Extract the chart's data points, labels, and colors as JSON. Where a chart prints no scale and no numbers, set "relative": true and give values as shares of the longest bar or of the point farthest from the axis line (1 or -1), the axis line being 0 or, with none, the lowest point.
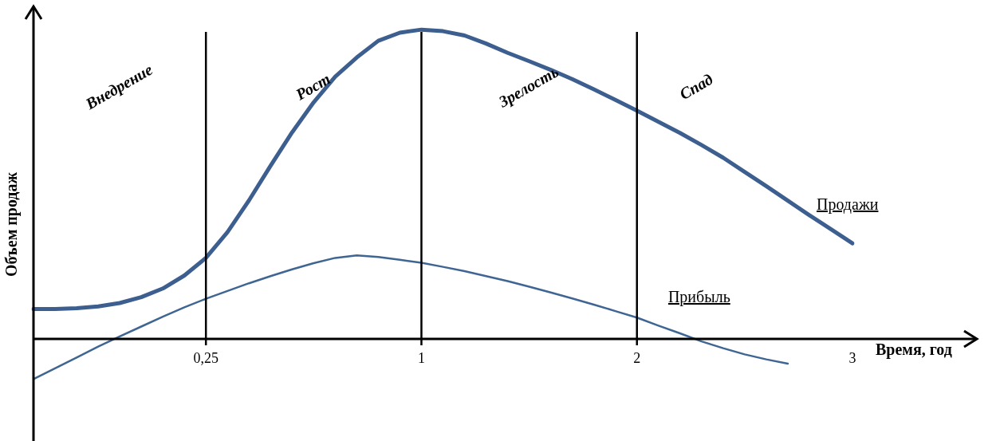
{
  "chart_data": {
    "type": "line",
    "relative": true,
    "ylabel": "Объем продаж",
    "xlabel": "Время, год",
    "categories": [
      null,
      null,
      null,
      null,
      null,
      null,
      null,
      null,
      "0,25",
      null,
      null,
      null,
      null,
      null,
      null,
      null,
      null,
      null,
      "1",
      null,
      null,
      null,
      null,
      null,
      null,
      null,
      null,
      null,
      "2",
      null,
      null,
      null,
      null,
      null,
      null,
      null,
      null,
      null,
      "3"
    ],
    "series": [
      {
        "name": "Продажи",
        "color": "#3d5f8f",
        "values": [
          0.097,
          0.097,
          0.099,
          0.105,
          0.116,
          0.135,
          0.163,
          0.205,
          0.262,
          0.345,
          0.448,
          0.56,
          0.668,
          0.765,
          0.848,
          0.91,
          0.964,
          0.99,
          1,
          0.995,
          0.981,
          0.955,
          0.925,
          0.898,
          0.87,
          0.84,
          0.807,
          0.773,
          0.738,
          0.702,
          0.666,
          0.627,
          0.586,
          0.54,
          0.494,
          0.447,
          0.4,
          0.355,
          0.309
        ]
      },
      {
        "name": "Прибыль",
        "color": "#3f6593",
        "values": [
          -0.13,
          -0.095,
          -0.06,
          -0.025,
          0.008,
          0.04,
          0.072,
          0.102,
          0.13,
          0.155,
          0.18,
          0.203,
          0.225,
          0.245,
          0.262,
          0.27,
          0.265,
          0.256,
          0.246,
          0.233,
          0.219,
          0.203,
          0.187,
          0.169,
          0.15,
          0.131,
          0.111,
          0.09,
          0.069,
          0.043,
          0.018,
          -0.008,
          -0.03,
          -0.05,
          -0.066,
          -0.08,
          null,
          null,
          null
        ]
      }
    ],
    "ref_lines": [
      {
        "axis": "x",
        "value": "0,25",
        "color": "#000000"
      },
      {
        "axis": "x",
        "value": "1",
        "color": "#000000"
      },
      {
        "axis": "x",
        "value": "2",
        "color": "#000000"
      }
    ],
    "annotations": [
      "Внедрение",
      "Рост",
      "Зрелость",
      "Спад"
    ],
    "grid": false,
    "legend": false,
    "marker": "none",
    "line_style": "solid",
    "tick_labels": "x"
  }
}
